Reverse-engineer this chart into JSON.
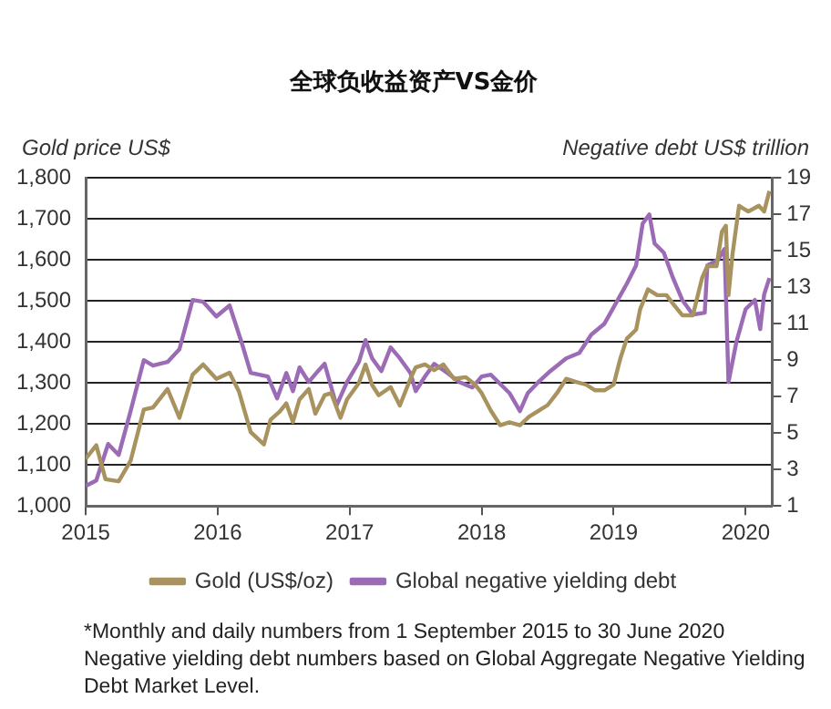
{
  "chart_data": {
    "type": "line",
    "title": "全球负收益资产VS金价",
    "ylabel": "Gold price US$",
    "y2label": "Negative debt US$ trillion",
    "xlim": [
      2015,
      2020.2
    ],
    "xticks": [
      2015,
      2016,
      2017,
      2018,
      2019,
      2020
    ],
    "ylim": [
      1000,
      1800
    ],
    "yticks": [
      {
        "value": 1000,
        "label": "1,000"
      },
      {
        "value": 1100,
        "label": "1,100"
      },
      {
        "value": 1200,
        "label": "1,200"
      },
      {
        "value": 1300,
        "label": "1,300"
      },
      {
        "value": 1400,
        "label": "1,400"
      },
      {
        "value": 1500,
        "label": "1,500"
      },
      {
        "value": 1600,
        "label": "1,600"
      },
      {
        "value": 1700,
        "label": "1,700"
      },
      {
        "value": 1800,
        "label": "1,800"
      }
    ],
    "y2lim": [
      1,
      19
    ],
    "y2ticks": [
      1,
      3,
      5,
      7,
      9,
      11,
      13,
      15,
      17,
      19
    ],
    "grid": "y",
    "legend": "bottom",
    "marker": "none",
    "line_style": "solid",
    "series": [
      {
        "name": "Gold (US$/oz)",
        "color": "#a8935e",
        "x": [
          2015.0,
          2015.08,
          2015.15,
          2015.25,
          2015.34,
          2015.44,
          2015.51,
          2015.62,
          2015.71,
          2015.81,
          2015.89,
          2015.99,
          2016.09,
          2016.16,
          2016.25,
          2016.35,
          2016.4,
          2016.47,
          2016.52,
          2016.57,
          2016.62,
          2016.69,
          2016.74,
          2016.81,
          2016.86,
          2016.93,
          2016.98,
          2017.07,
          2017.12,
          2017.17,
          2017.22,
          2017.31,
          2017.38,
          2017.46,
          2017.5,
          2017.57,
          2017.64,
          2017.71,
          2017.79,
          2017.88,
          2017.95,
          2018.0,
          2018.07,
          2018.14,
          2018.21,
          2018.29,
          2018.36,
          2018.43,
          2018.5,
          2018.57,
          2018.64,
          2018.71,
          2018.79,
          2018.86,
          2018.93,
          2019.0,
          2019.05,
          2019.1,
          2019.17,
          2019.2,
          2019.26,
          2019.33,
          2019.4,
          2019.45,
          2019.52,
          2019.6,
          2019.67,
          2019.71,
          2019.78,
          2019.82,
          2019.85,
          2019.87,
          2019.9,
          2019.95,
          2020.02,
          2020.1,
          2020.14,
          2020.18
        ],
        "values": [
          1115,
          1148,
          1065,
          1060,
          1110,
          1235,
          1240,
          1285,
          1215,
          1320,
          1345,
          1310,
          1325,
          1280,
          1180,
          1150,
          1210,
          1230,
          1250,
          1205,
          1260,
          1285,
          1225,
          1270,
          1275,
          1215,
          1260,
          1300,
          1345,
          1295,
          1270,
          1290,
          1245,
          1310,
          1338,
          1345,
          1331,
          1345,
          1310,
          1314,
          1296,
          1275,
          1232,
          1197,
          1204,
          1197,
          1218,
          1232,
          1246,
          1275,
          1310,
          1303,
          1296,
          1282,
          1282,
          1296,
          1359,
          1408,
          1430,
          1479,
          1528,
          1514,
          1514,
          1493,
          1465,
          1465,
          1556,
          1585,
          1585,
          1669,
          1683,
          1514,
          1613,
          1732,
          1718,
          1732,
          1718,
          1768
        ]
      },
      {
        "name": "Global negative yielding debt",
        "color": "#9b6bb5",
        "axis": "y2",
        "x": [
          2015.0,
          2015.08,
          2015.17,
          2015.25,
          2015.34,
          2015.44,
          2015.51,
          2015.62,
          2015.71,
          2015.81,
          2015.89,
          2015.99,
          2016.09,
          2016.18,
          2016.25,
          2016.38,
          2016.45,
          2016.52,
          2016.57,
          2016.62,
          2016.69,
          2016.76,
          2016.81,
          2016.9,
          2016.98,
          2017.07,
          2017.12,
          2017.17,
          2017.24,
          2017.31,
          2017.38,
          2017.46,
          2017.5,
          2017.57,
          2017.64,
          2017.74,
          2017.83,
          2017.93,
          2018.0,
          2018.07,
          2018.14,
          2018.21,
          2018.29,
          2018.35,
          2018.43,
          2018.52,
          2018.64,
          2018.74,
          2018.83,
          2018.93,
          2019.0,
          2019.1,
          2019.17,
          2019.22,
          2019.27,
          2019.31,
          2019.38,
          2019.45,
          2019.52,
          2019.6,
          2019.69,
          2019.71,
          2019.79,
          2019.84,
          2019.87,
          2019.93,
          2020.0,
          2020.07,
          2020.11,
          2020.14,
          2020.18
        ],
        "values": [
          2.1,
          2.4,
          4.4,
          3.8,
          6.2,
          9.0,
          8.7,
          8.9,
          9.6,
          12.3,
          12.2,
          11.4,
          12.0,
          10.0,
          8.3,
          8.1,
          6.9,
          8.3,
          7.3,
          8.6,
          7.8,
          8.4,
          8.8,
          6.5,
          7.8,
          8.9,
          10.1,
          9.1,
          8.4,
          9.7,
          9.1,
          8.3,
          7.3,
          8.1,
          8.8,
          8.3,
          7.8,
          7.5,
          8.1,
          8.2,
          7.7,
          7.2,
          6.2,
          7.2,
          7.8,
          8.4,
          9.1,
          9.4,
          10.4,
          11.0,
          11.9,
          13.2,
          14.2,
          16.5,
          17.0,
          15.4,
          14.9,
          13.5,
          12.3,
          11.5,
          11.6,
          14.2,
          14.5,
          15.1,
          7.8,
          10.0,
          11.8,
          12.3,
          10.7,
          12.6,
          13.5
        ]
      }
    ],
    "annotations": [
      "*Monthly and daily numbers from 1 September 2015 to 30 June 2020",
      "Negative yielding debt numbers based on Global Aggregate Negative Yielding Debt Market Level."
    ]
  }
}
